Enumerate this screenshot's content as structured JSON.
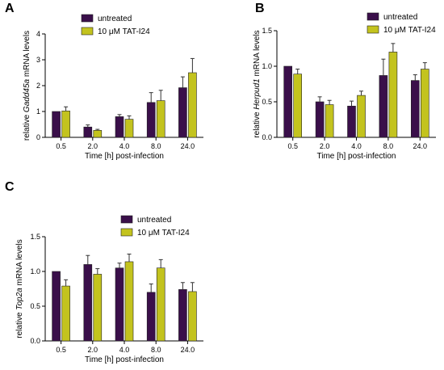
{
  "colors": {
    "untreated": "#3a0f4a",
    "treated": "#c3c31e",
    "axis": "#000000",
    "error": "#333333"
  },
  "chart_data": [
    {
      "type": "bar",
      "panel": "A",
      "categories": [
        "0.5",
        "2.0",
        "4.0",
        "8.0",
        "24.0"
      ],
      "xlabel": "Time [h] post-infection",
      "ylabel_parts": [
        "relative ",
        "Gadd45a",
        " mRNA levels"
      ],
      "ylim": [
        0,
        4
      ],
      "yticks": [
        "0",
        "1",
        "2",
        "3",
        "4"
      ],
      "legend": [
        "untreated",
        "10 μM TAT-I24"
      ],
      "series": [
        {
          "name": "untreated",
          "values": [
            1.0,
            0.4,
            0.8,
            1.35,
            1.92
          ],
          "errors": [
            0.0,
            0.08,
            0.08,
            0.38,
            0.42
          ]
        },
        {
          "name": "10 μM TAT-I24",
          "values": [
            1.02,
            0.27,
            0.7,
            1.42,
            2.5
          ],
          "errors": [
            0.16,
            0.04,
            0.13,
            0.4,
            0.55
          ]
        }
      ]
    },
    {
      "type": "bar",
      "panel": "B",
      "categories": [
        "0.5",
        "2.0",
        "4.0",
        "8.0",
        "24.0"
      ],
      "xlabel": "Time [h] post-infection",
      "ylabel_parts": [
        "relative ",
        "Herpud1",
        " mRNA levels"
      ],
      "ylim": [
        0,
        1.5
      ],
      "yticks": [
        "0.0",
        "0.5",
        "1.0",
        "1.5"
      ],
      "legend": [
        "untreated",
        "10 μM TAT-I24"
      ],
      "series": [
        {
          "name": "untreated",
          "values": [
            1.0,
            0.5,
            0.44,
            0.87,
            0.8
          ],
          "errors": [
            0.0,
            0.07,
            0.07,
            0.23,
            0.08
          ]
        },
        {
          "name": "10 μM TAT-I24",
          "values": [
            0.89,
            0.46,
            0.59,
            1.2,
            0.96
          ],
          "errors": [
            0.07,
            0.06,
            0.06,
            0.12,
            0.09
          ]
        }
      ]
    },
    {
      "type": "bar",
      "panel": "C",
      "categories": [
        "0.5",
        "2.0",
        "4.0",
        "8.0",
        "24.0"
      ],
      "xlabel": "Time [h] post-infection",
      "ylabel_parts": [
        "relative ",
        "Top2a",
        " mRNA levels"
      ],
      "ylim": [
        0,
        1.5
      ],
      "yticks": [
        "0.0",
        "0.5",
        "1.0",
        "1.5"
      ],
      "legend": [
        "untreated",
        "10 μM TAT-I24"
      ],
      "series": [
        {
          "name": "untreated",
          "values": [
            1.0,
            1.1,
            1.05,
            0.7,
            0.74
          ],
          "errors": [
            0.0,
            0.13,
            0.07,
            0.12,
            0.1
          ]
        },
        {
          "name": "10 μM TAT-I24",
          "values": [
            0.79,
            0.96,
            1.14,
            1.05,
            0.71
          ],
          "errors": [
            0.09,
            0.08,
            0.11,
            0.12,
            0.13
          ]
        }
      ]
    }
  ]
}
